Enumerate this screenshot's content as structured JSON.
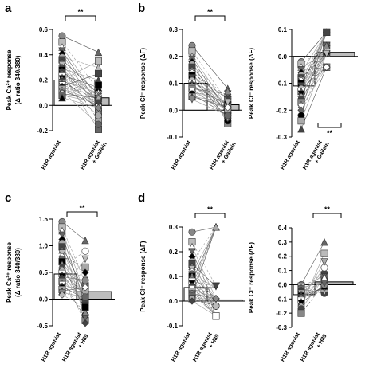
{
  "chart_data": [
    {
      "panel": "a",
      "type": "bar",
      "ylabel_lines": [
        "Peak Ca²⁺ response",
        "(Δ ratio 340/380)"
      ],
      "ylim": [
        -0.2,
        0.6
      ],
      "yticks": [
        "-0.2",
        "0.0",
        "0.2",
        "0.4",
        "0.6"
      ],
      "categories": [
        [
          "H1R agonist"
        ],
        [
          "H1R agonist",
          "+ Gallein"
        ]
      ],
      "values": [
        0.2,
        0.06
      ],
      "significance": "**",
      "points_before": [
        0.55,
        0.5,
        0.46,
        0.43,
        0.41,
        0.38,
        0.36,
        0.34,
        0.32,
        0.3,
        0.29,
        0.28,
        0.27,
        0.26,
        0.25,
        0.24,
        0.23,
        0.22,
        0.21,
        0.2,
        0.19,
        0.18,
        0.17,
        0.16,
        0.15,
        0.14,
        0.13,
        0.12,
        0.11,
        0.1,
        0.09,
        0.08,
        0.06
      ],
      "points_after": [
        0.42,
        0.35,
        0.3,
        0.25,
        0.2,
        0.16,
        0.14,
        0.12,
        0.1,
        0.09,
        0.08,
        0.07,
        0.06,
        0.05,
        0.05,
        0.04,
        0.04,
        0.03,
        0.03,
        0.02,
        0.02,
        0.01,
        0.01,
        0.0,
        0.0,
        -0.01,
        -0.02,
        -0.03,
        -0.05,
        -0.08,
        -0.12,
        -0.15,
        -0.19
      ]
    },
    {
      "panel": "b",
      "type": "bar",
      "ylabel_lines": [
        "Peak Cl⁻ response (ΔF)"
      ],
      "ylim": [
        -0.1,
        0.3
      ],
      "yticks": [
        "-0.1",
        "0.0",
        "0.1",
        "0.2",
        "0.3"
      ],
      "categories": [
        [
          "H1R agonist"
        ],
        [
          "H1R agonist",
          "+ Gallein"
        ]
      ],
      "values": [
        0.1,
        0.02
      ],
      "significance": "**",
      "points_before": [
        0.24,
        0.22,
        0.2,
        0.19,
        0.18,
        0.17,
        0.16,
        0.15,
        0.14,
        0.14,
        0.13,
        0.13,
        0.12,
        0.12,
        0.11,
        0.11,
        0.1,
        0.1,
        0.09,
        0.09,
        0.08,
        0.08,
        0.07,
        0.07,
        0.06,
        0.06,
        0.05,
        0.05,
        0.04
      ],
      "points_after": [
        0.08,
        0.07,
        0.06,
        0.05,
        0.05,
        0.04,
        0.04,
        0.03,
        0.03,
        0.03,
        0.02,
        0.02,
        0.02,
        0.01,
        0.01,
        0.01,
        0.0,
        0.0,
        0.0,
        -0.01,
        -0.01,
        -0.01,
        -0.02,
        -0.02,
        -0.02,
        -0.03,
        -0.03,
        -0.04,
        -0.05
      ]
    },
    {
      "panel": "b2",
      "type": "bar",
      "ylabel_lines": [
        "Peak Cl⁻ response (ΔF)"
      ],
      "ylim": [
        -0.3,
        0.1
      ],
      "yticks": [
        "-0.3",
        "-0.2",
        "-0.1",
        "0.0",
        "0.1"
      ],
      "categories": [
        [
          "H1R agonist"
        ],
        [
          "H1R agonist",
          "+ Gallein"
        ]
      ],
      "values": [
        -0.11,
        0.015
      ],
      "significance": "**",
      "points_before": [
        -0.02,
        -0.03,
        -0.04,
        -0.05,
        -0.06,
        -0.07,
        -0.08,
        -0.08,
        -0.09,
        -0.09,
        -0.1,
        -0.1,
        -0.11,
        -0.11,
        -0.12,
        -0.12,
        -0.13,
        -0.13,
        -0.14,
        -0.15,
        -0.16,
        -0.17,
        -0.18,
        -0.19,
        -0.2,
        -0.22,
        -0.24,
        -0.27
      ],
      "points_after": [
        0.09,
        0.08,
        0.07,
        0.06,
        0.06,
        0.05,
        0.05,
        0.04,
        0.04,
        0.03,
        0.03,
        0.02,
        0.02,
        0.01,
        0.01,
        0.0,
        0.0,
        -0.01,
        -0.02,
        -0.02,
        -0.03,
        -0.04,
        -0.05,
        -0.06,
        -0.07,
        -0.08,
        -0.1,
        -0.11
      ]
    },
    {
      "panel": "c",
      "type": "bar",
      "ylabel_lines": [
        "Peak Ca²⁺ response",
        "(Δ ratio 340/380)"
      ],
      "ylim": [
        -0.5,
        1.5
      ],
      "yticks": [
        "-0.5",
        "0.0",
        "0.5",
        "1.0",
        "1.5"
      ],
      "categories": [
        [
          "H1R agonist"
        ],
        [
          "H1R agonist",
          "+ H89"
        ]
      ],
      "values": [
        0.47,
        0.14
      ],
      "significance": "**",
      "points_before": [
        1.45,
        1.35,
        1.28,
        1.2,
        1.12,
        1.05,
        0.98,
        0.92,
        0.86,
        0.8,
        0.75,
        0.7,
        0.65,
        0.6,
        0.56,
        0.52,
        0.48,
        0.45,
        0.42,
        0.39,
        0.36,
        0.33,
        0.3,
        0.27,
        0.24,
        0.21,
        0.18,
        0.15,
        0.12,
        0.08
      ],
      "points_after": [
        1.1,
        0.9,
        0.75,
        0.6,
        0.5,
        0.42,
        0.35,
        0.3,
        0.25,
        0.22,
        0.18,
        0.15,
        0.12,
        0.1,
        0.08,
        0.06,
        0.04,
        0.02,
        0.0,
        -0.02,
        -0.05,
        -0.08,
        -0.12,
        -0.15,
        -0.2,
        -0.25,
        -0.3,
        -0.35,
        -0.4,
        -0.45
      ]
    },
    {
      "panel": "d",
      "type": "bar",
      "ylabel_lines": [
        "Peak Cl⁻ response (ΔF)"
      ],
      "ylim": [
        -0.1,
        0.3
      ],
      "yticks": [
        "-0.1",
        "0.0",
        "0.1",
        "0.2",
        "0.3"
      ],
      "categories": [
        [
          "H1R agonist"
        ],
        [
          "H1R agonist",
          "+ H89"
        ]
      ],
      "values": [
        0.055,
        0.005
      ],
      "significance": "**",
      "points_before": [
        0.28,
        0.24,
        0.22,
        0.2,
        0.18,
        0.16,
        0.15,
        0.14,
        0.13,
        0.12,
        0.11,
        0.1,
        0.1,
        0.09,
        0.09,
        0.08,
        0.08,
        0.07,
        0.07,
        0.06,
        0.06,
        0.05,
        0.05,
        0.05,
        0.04,
        0.04,
        0.04,
        0.03,
        0.03,
        0.03,
        0.02,
        0.02,
        0.01,
        0.01,
        0.0
      ],
      "points_after": [
        0.3,
        0.25,
        0.2,
        0.16,
        0.12,
        0.1,
        0.08,
        0.06,
        0.05,
        0.04,
        0.03,
        0.02,
        0.02,
        0.01,
        0.01,
        0.0,
        0.0,
        0.0,
        -0.01,
        -0.01,
        -0.02,
        -0.02,
        -0.03,
        -0.03,
        -0.04,
        -0.04,
        -0.05,
        -0.05,
        -0.06,
        -0.07,
        -0.08,
        -0.09,
        -0.1,
        -0.1,
        -0.1
      ]
    },
    {
      "panel": "d2",
      "type": "bar",
      "ylabel_lines": [
        "Peak Cl⁻ response (ΔF)"
      ],
      "ylim": [
        -0.3,
        0.4
      ],
      "yticks": [
        "-0.3",
        "-0.2",
        "-0.1",
        "0.0",
        "0.1",
        "0.2",
        "0.3",
        "0.4"
      ],
      "categories": [
        [
          "H1R agonist"
        ],
        [
          "H1R agonist",
          "+ H89"
        ]
      ],
      "values": [
        -0.07,
        0.02
      ],
      "significance": "**",
      "points_before": [
        0.0,
        -0.01,
        -0.02,
        -0.03,
        -0.04,
        -0.05,
        -0.05,
        -0.06,
        -0.06,
        -0.07,
        -0.07,
        -0.08,
        -0.08,
        -0.09,
        -0.09,
        -0.1,
        -0.11,
        -0.12,
        -0.13,
        -0.15,
        -0.17,
        -0.2
      ],
      "points_after": [
        0.3,
        0.22,
        0.16,
        0.12,
        0.1,
        0.08,
        0.07,
        0.06,
        0.05,
        0.04,
        0.04,
        0.03,
        0.03,
        0.02,
        0.02,
        0.01,
        0.0,
        -0.01,
        -0.02,
        -0.03,
        -0.05,
        -0.06
      ]
    }
  ]
}
